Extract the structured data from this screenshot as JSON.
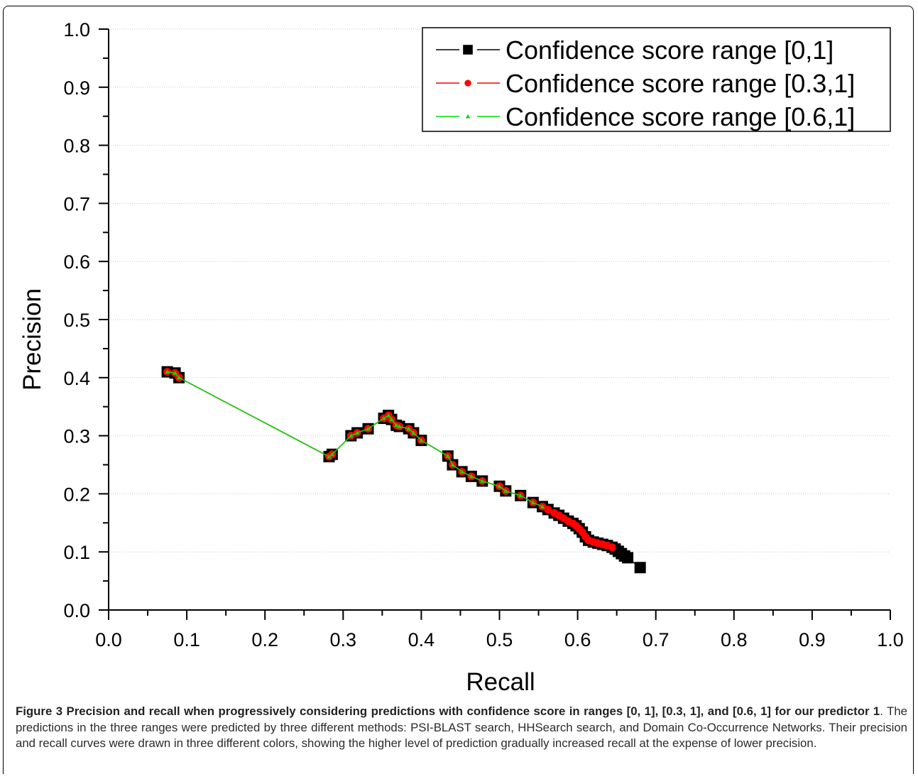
{
  "chart_data": {
    "type": "line",
    "xlabel": "Recall",
    "ylabel": "Precision",
    "xlim": [
      0.0,
      1.0
    ],
    "ylim": [
      0.0,
      1.0
    ],
    "x_ticks": [
      "0.0",
      "0.1",
      "0.2",
      "0.3",
      "0.4",
      "0.5",
      "0.6",
      "0.7",
      "0.8",
      "0.9",
      "1.0"
    ],
    "y_ticks": [
      "0.0",
      "0.1",
      "0.2",
      "0.3",
      "0.4",
      "0.5",
      "0.6",
      "0.7",
      "0.8",
      "0.9",
      "1.0"
    ],
    "grid": "horizontal dotted",
    "legend_position": "top-right",
    "series": [
      {
        "name": "Confidence score range [0,1]",
        "color": "#000000",
        "marker": "square",
        "x": [
          0.075,
          0.085,
          0.09,
          0.282,
          0.286,
          0.31,
          0.318,
          0.332,
          0.352,
          0.358,
          0.362,
          0.368,
          0.372,
          0.384,
          0.39,
          0.4,
          0.434,
          0.44,
          0.452,
          0.464,
          0.478,
          0.5,
          0.508,
          0.527,
          0.543,
          0.555,
          0.562,
          0.57,
          0.576,
          0.582,
          0.588,
          0.594,
          0.598,
          0.602,
          0.606,
          0.61,
          0.614,
          0.62,
          0.626,
          0.632,
          0.638,
          0.644,
          0.648,
          0.652,
          0.656,
          0.66,
          0.664,
          0.68
        ],
        "y": [
          0.41,
          0.408,
          0.4,
          0.264,
          0.268,
          0.3,
          0.305,
          0.312,
          0.33,
          0.335,
          0.328,
          0.318,
          0.316,
          0.312,
          0.305,
          0.292,
          0.265,
          0.25,
          0.238,
          0.23,
          0.222,
          0.213,
          0.205,
          0.197,
          0.185,
          0.178,
          0.173,
          0.167,
          0.163,
          0.158,
          0.153,
          0.149,
          0.145,
          0.14,
          0.134,
          0.126,
          0.12,
          0.117,
          0.115,
          0.113,
          0.111,
          0.108,
          0.105,
          0.101,
          0.097,
          0.093,
          0.09,
          0.073
        ]
      },
      {
        "name": "Confidence score range [0.3,1]",
        "color": "#ff0000",
        "marker": "circle",
        "x": [
          0.075,
          0.085,
          0.09,
          0.282,
          0.286,
          0.31,
          0.318,
          0.332,
          0.352,
          0.358,
          0.362,
          0.368,
          0.372,
          0.384,
          0.39,
          0.4,
          0.434,
          0.44,
          0.452,
          0.464,
          0.478,
          0.5,
          0.508,
          0.527,
          0.543,
          0.555,
          0.562,
          0.57,
          0.576,
          0.582,
          0.588,
          0.594,
          0.598,
          0.602,
          0.606,
          0.61,
          0.614,
          0.62,
          0.626,
          0.632,
          0.638,
          0.644
        ],
        "y": [
          0.41,
          0.408,
          0.4,
          0.264,
          0.268,
          0.3,
          0.305,
          0.312,
          0.33,
          0.335,
          0.328,
          0.318,
          0.316,
          0.312,
          0.305,
          0.292,
          0.265,
          0.25,
          0.238,
          0.23,
          0.222,
          0.213,
          0.205,
          0.197,
          0.185,
          0.178,
          0.173,
          0.167,
          0.163,
          0.158,
          0.153,
          0.149,
          0.145,
          0.14,
          0.134,
          0.126,
          0.12,
          0.117,
          0.115,
          0.113,
          0.111,
          0.108
        ]
      },
      {
        "name": "Confidence score range [0.6,1]",
        "color": "#00dd00",
        "marker": "triangle",
        "x": [
          0.075,
          0.085,
          0.09,
          0.282,
          0.286,
          0.31,
          0.318,
          0.332,
          0.352,
          0.358,
          0.362,
          0.368,
          0.372,
          0.384,
          0.39,
          0.4,
          0.434,
          0.44,
          0.452,
          0.464,
          0.478,
          0.5,
          0.508,
          0.527,
          0.543,
          0.555
        ],
        "y": [
          0.41,
          0.408,
          0.4,
          0.264,
          0.268,
          0.3,
          0.305,
          0.312,
          0.33,
          0.335,
          0.328,
          0.318,
          0.316,
          0.312,
          0.305,
          0.292,
          0.265,
          0.25,
          0.238,
          0.23,
          0.222,
          0.213,
          0.205,
          0.197,
          0.185,
          0.178
        ]
      }
    ]
  },
  "caption": {
    "title": "Figure 3 Precision and recall when progressively considering predictions with confidence score in ranges [0, 1], [0.3, 1], and [0.6, 1] for our predictor 1",
    "body": ". The predictions in the three ranges were predicted by three different methods: PSI-BLAST search, HHSearch search, and Domain Co-Occurrence Networks. Their precision and recall curves were drawn in three different colors, showing the higher level of prediction gradually increased recall at the expense of lower precision."
  }
}
